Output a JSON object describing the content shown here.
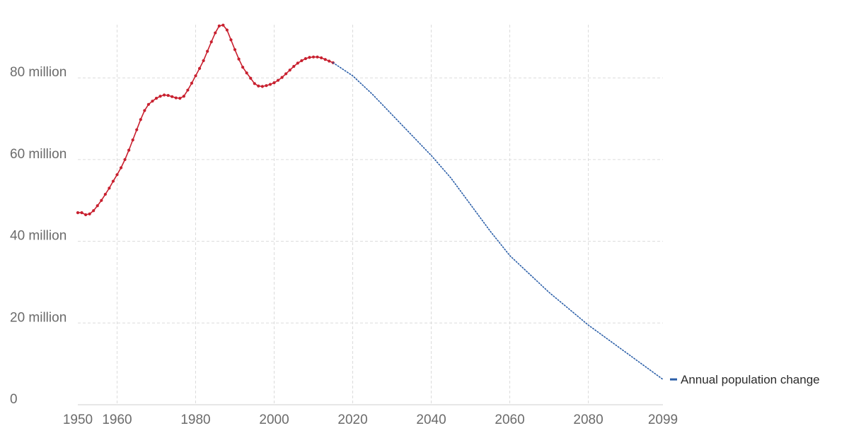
{
  "chart_data": {
    "type": "line",
    "title": "",
    "xlabel": "",
    "ylabel": "",
    "xlim": [
      1950,
      2099
    ],
    "ylim": [
      0,
      93000000
    ],
    "x_ticks": [
      1950,
      1960,
      1980,
      2000,
      2020,
      2040,
      2060,
      2080,
      2099
    ],
    "x_tick_labels": [
      "1950",
      "1960",
      "1980",
      "2000",
      "2020",
      "2040",
      "2060",
      "2080",
      "2099"
    ],
    "y_ticks": [
      0,
      20000000,
      40000000,
      60000000,
      80000000
    ],
    "y_tick_labels": [
      "0",
      "20 million",
      "40 million",
      "60 million",
      "80 million"
    ],
    "grid": true,
    "legend": {
      "label": "Annual population change",
      "placement": "right-end"
    },
    "series": [
      {
        "name": "Annual population change",
        "style": "solid-markers",
        "color": "#c8202f",
        "x": [
          1950,
          1951,
          1952,
          1953,
          1954,
          1955,
          1956,
          1957,
          1958,
          1959,
          1960,
          1961,
          1962,
          1963,
          1964,
          1965,
          1966,
          1967,
          1968,
          1969,
          1970,
          1971,
          1972,
          1973,
          1974,
          1975,
          1976,
          1977,
          1978,
          1979,
          1980,
          1981,
          1982,
          1983,
          1984,
          1985,
          1986,
          1987,
          1988,
          1989,
          1990,
          1991,
          1992,
          1993,
          1994,
          1995,
          1996,
          1997,
          1998,
          1999,
          2000,
          2001,
          2002,
          2003,
          2004,
          2005,
          2006,
          2007,
          2008,
          2009,
          2010,
          2011,
          2012,
          2013,
          2014,
          2015
        ],
        "values": [
          47000000,
          47000000,
          46500000,
          46700000,
          47500000,
          48700000,
          50000000,
          51500000,
          53000000,
          54700000,
          56300000,
          58000000,
          60000000,
          62300000,
          64800000,
          67300000,
          69800000,
          72000000,
          73500000,
          74300000,
          75000000,
          75500000,
          75800000,
          75700000,
          75400000,
          75100000,
          75000000,
          75500000,
          77000000,
          78700000,
          80500000,
          82300000,
          84200000,
          86500000,
          88800000,
          91000000,
          92700000,
          92900000,
          91700000,
          89300000,
          86900000,
          84600000,
          82600000,
          81200000,
          79900000,
          78600000,
          78000000,
          77900000,
          78100000,
          78400000,
          78800000,
          79400000,
          80100000,
          81000000,
          81900000,
          82800000,
          83600000,
          84200000,
          84700000,
          85000000,
          85100000,
          85100000,
          84900000,
          84500000,
          84100000,
          83700000
        ]
      },
      {
        "name": "",
        "style": "dotted",
        "color": "#2a5ea8",
        "x": [
          2015,
          2020,
          2025,
          2030,
          2035,
          2040,
          2045,
          2050,
          2055,
          2060,
          2065,
          2070,
          2075,
          2080,
          2085,
          2090,
          2095,
          2099
        ],
        "values": [
          83700000,
          80500000,
          76000000,
          71000000,
          66000000,
          61000000,
          55500000,
          49000000,
          42500000,
          36500000,
          32000000,
          27500000,
          23500000,
          19500000,
          16000000,
          12500000,
          9000000,
          6200000
        ]
      }
    ]
  }
}
